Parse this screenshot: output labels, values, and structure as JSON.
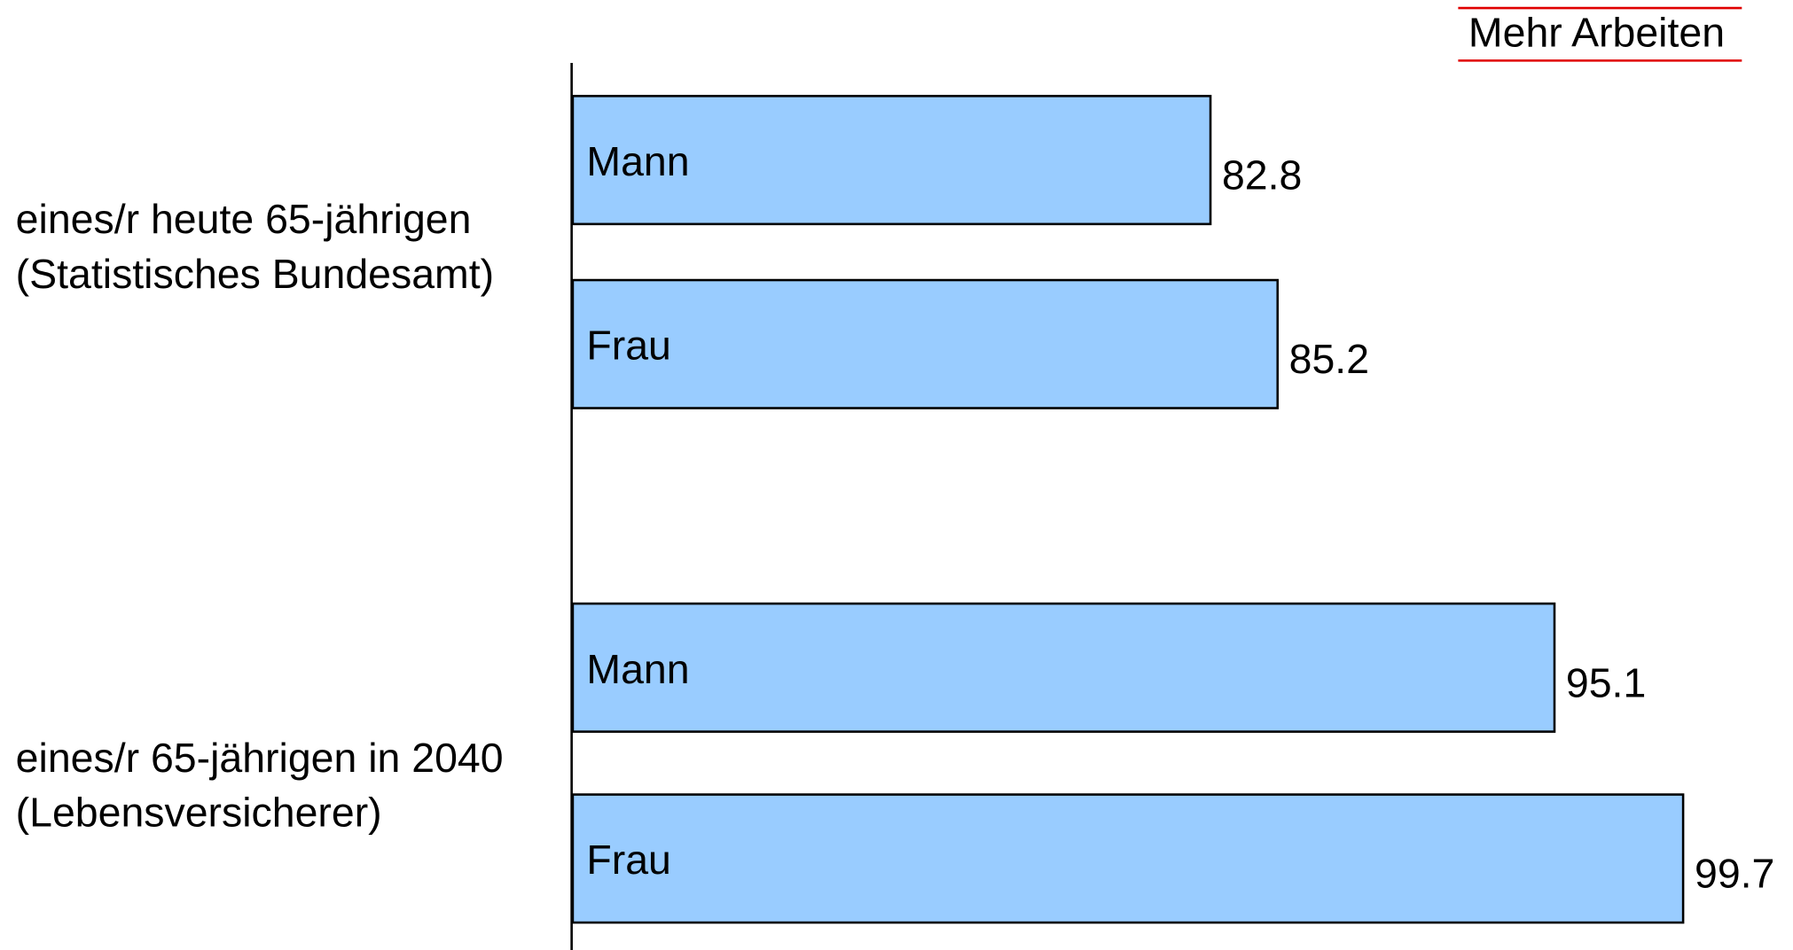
{
  "chart_data": {
    "type": "bar",
    "orientation": "horizontal",
    "title": "Mehr Arbeiten",
    "color": "#99ccff",
    "xlim": [
      60,
      100
    ],
    "groups": [
      {
        "label": [
          "eines/r heute 65-jährigen",
          "(Statistisches Bundesamt)"
        ],
        "bars": [
          {
            "label": "Mann",
            "value": 82.8
          },
          {
            "label": "Frau",
            "value": 85.2
          }
        ]
      },
      {
        "label": [
          "eines/r 65-jährigen in 2040",
          "(Lebensversicherer)"
        ],
        "bars": [
          {
            "label": "Mann",
            "value": 95.1
          },
          {
            "label": "Frau",
            "value": 99.7
          }
        ]
      }
    ]
  }
}
